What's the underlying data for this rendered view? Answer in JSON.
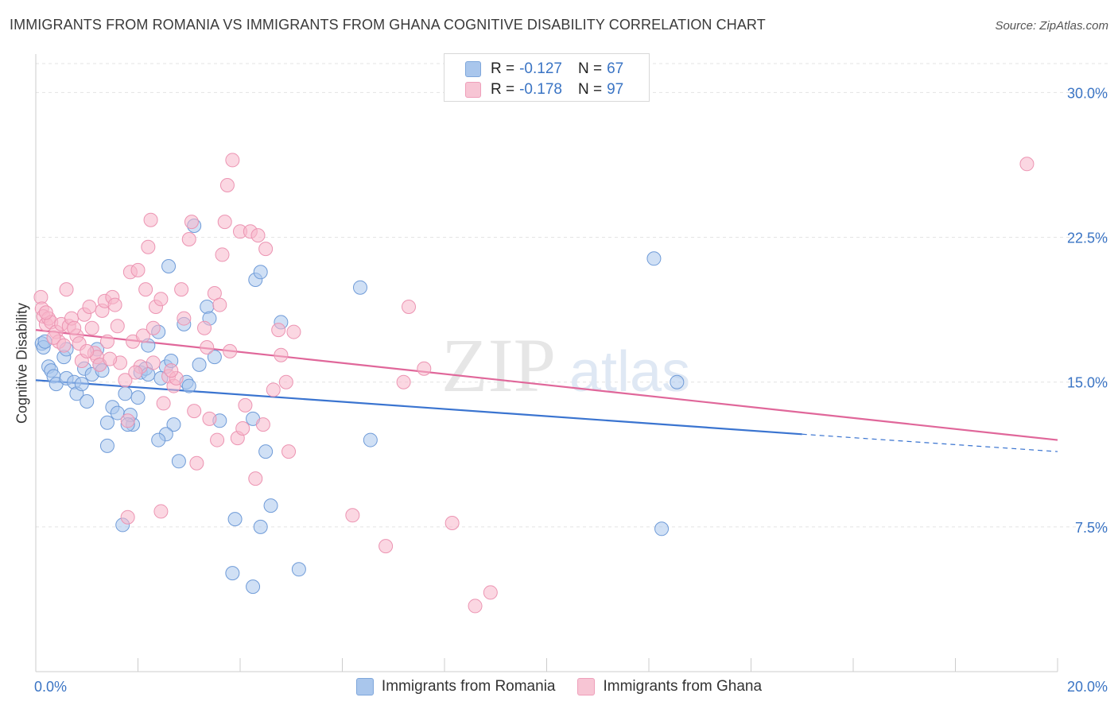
{
  "title": "IMMIGRANTS FROM ROMANIA VS IMMIGRANTS FROM GHANA COGNITIVE DISABILITY CORRELATION CHART",
  "source": "Source: ZipAtlas.com",
  "watermark": {
    "zip": "ZIP",
    "atlas": "atlas"
  },
  "legend_stats": [
    {
      "r_label": "R =",
      "r_value": "-0.127",
      "n_label": "N =",
      "n_value": "67",
      "color": "#a9c6ec"
    },
    {
      "r_label": "R =",
      "r_value": "-0.178",
      "n_label": "N =",
      "n_value": "97",
      "color": "#f7b7cb"
    }
  ],
  "chart_data": {
    "type": "scatter",
    "title": "IMMIGRANTS FROM ROMANIA VS IMMIGRANTS FROM GHANA COGNITIVE DISABILITY CORRELATION CHART",
    "xlabel": "",
    "ylabel": "Cognitive Disability",
    "xlim": [
      0,
      20
    ],
    "ylim": [
      0,
      31.5
    ],
    "x_tick_labels": [
      "0.0%",
      "20.0%"
    ],
    "y_ticks": [
      7.5,
      15.0,
      22.5,
      30.0
    ],
    "y_tick_labels": [
      "7.5%",
      "15.0%",
      "22.5%",
      "30.0%"
    ],
    "grid": true,
    "legend_position": "bottom",
    "series": [
      {
        "name": "Immigrants from Romania",
        "color": "#3a74d0",
        "fill": "#a9c6ec",
        "trend": {
          "x0": 0,
          "y0": 15.1,
          "x1": 15.0,
          "y1": 12.3,
          "dashed_to_x": 20,
          "dashed_to_y": 11.4
        },
        "points": [
          [
            0.12,
            17.0
          ],
          [
            0.15,
            16.8
          ],
          [
            0.25,
            15.8
          ],
          [
            0.3,
            15.6
          ],
          [
            0.35,
            15.3
          ],
          [
            0.55,
            16.3
          ],
          [
            0.4,
            14.9
          ],
          [
            0.6,
            15.2
          ],
          [
            0.75,
            15.0
          ],
          [
            0.8,
            14.4
          ],
          [
            0.95,
            15.7
          ],
          [
            1.1,
            15.4
          ],
          [
            1.2,
            16.7
          ],
          [
            1.25,
            15.9
          ],
          [
            1.3,
            15.6
          ],
          [
            1.0,
            14.0
          ],
          [
            1.5,
            13.7
          ],
          [
            1.4,
            12.9
          ],
          [
            1.6,
            13.4
          ],
          [
            1.75,
            14.4
          ],
          [
            1.9,
            12.8
          ],
          [
            1.85,
            13.3
          ],
          [
            2.0,
            14.2
          ],
          [
            2.05,
            15.5
          ],
          [
            2.15,
            15.7
          ],
          [
            2.2,
            16.9
          ],
          [
            2.4,
            17.6
          ],
          [
            2.55,
            15.8
          ],
          [
            2.65,
            16.1
          ],
          [
            2.7,
            12.8
          ],
          [
            2.55,
            12.3
          ],
          [
            2.4,
            12.0
          ],
          [
            2.8,
            10.9
          ],
          [
            2.9,
            18.0
          ],
          [
            2.95,
            15.0
          ],
          [
            3.1,
            23.1
          ],
          [
            3.2,
            15.9
          ],
          [
            3.35,
            18.9
          ],
          [
            3.4,
            18.3
          ],
          [
            3.5,
            16.3
          ],
          [
            3.6,
            13.0
          ],
          [
            2.6,
            21.0
          ],
          [
            2.2,
            15.4
          ],
          [
            1.4,
            11.7
          ],
          [
            1.7,
            7.6
          ],
          [
            3.9,
            7.9
          ],
          [
            4.4,
            7.5
          ],
          [
            4.6,
            8.6
          ],
          [
            4.5,
            11.4
          ],
          [
            4.25,
            13.1
          ],
          [
            4.3,
            20.3
          ],
          [
            4.4,
            20.7
          ],
          [
            4.8,
            18.1
          ],
          [
            3.85,
            5.1
          ],
          [
            4.25,
            4.4
          ],
          [
            5.15,
            5.3
          ],
          [
            6.35,
            19.9
          ],
          [
            6.55,
            12.0
          ],
          [
            12.1,
            21.4
          ],
          [
            12.55,
            15.0
          ],
          [
            12.25,
            7.4
          ],
          [
            0.18,
            17.1
          ],
          [
            0.6,
            16.7
          ],
          [
            0.9,
            14.9
          ],
          [
            1.8,
            12.8
          ],
          [
            2.45,
            15.2
          ],
          [
            3.0,
            14.8
          ]
        ]
      },
      {
        "name": "Immigrants from Ghana",
        "color": "#e0679a",
        "fill": "#f7b7cb",
        "trend": {
          "x0": 0,
          "y0": 17.7,
          "x1": 20,
          "y1": 12.0
        },
        "points": [
          [
            0.1,
            19.4
          ],
          [
            0.12,
            18.8
          ],
          [
            0.15,
            18.4
          ],
          [
            0.2,
            18.0
          ],
          [
            0.25,
            18.3
          ],
          [
            0.3,
            18.1
          ],
          [
            0.4,
            17.6
          ],
          [
            0.45,
            17.1
          ],
          [
            0.5,
            18.0
          ],
          [
            0.6,
            19.8
          ],
          [
            0.65,
            17.9
          ],
          [
            0.7,
            18.3
          ],
          [
            0.8,
            17.4
          ],
          [
            0.85,
            17.0
          ],
          [
            0.9,
            16.1
          ],
          [
            0.95,
            18.5
          ],
          [
            1.05,
            18.9
          ],
          [
            1.1,
            17.8
          ],
          [
            1.15,
            16.5
          ],
          [
            1.2,
            16.3
          ],
          [
            1.3,
            18.7
          ],
          [
            1.35,
            19.2
          ],
          [
            1.4,
            17.1
          ],
          [
            1.5,
            19.4
          ],
          [
            1.55,
            19.0
          ],
          [
            1.6,
            17.9
          ],
          [
            1.65,
            16.0
          ],
          [
            1.75,
            15.1
          ],
          [
            1.8,
            13.0
          ],
          [
            1.85,
            20.7
          ],
          [
            1.9,
            17.1
          ],
          [
            2.0,
            20.8
          ],
          [
            2.05,
            15.8
          ],
          [
            2.1,
            17.4
          ],
          [
            2.15,
            19.8
          ],
          [
            2.2,
            22.0
          ],
          [
            2.25,
            23.4
          ],
          [
            2.3,
            17.8
          ],
          [
            2.35,
            18.9
          ],
          [
            2.45,
            19.3
          ],
          [
            2.5,
            13.9
          ],
          [
            2.6,
            15.3
          ],
          [
            2.7,
            14.8
          ],
          [
            2.75,
            15.2
          ],
          [
            2.85,
            19.8
          ],
          [
            2.9,
            18.3
          ],
          [
            3.0,
            22.4
          ],
          [
            3.05,
            23.3
          ],
          [
            3.15,
            10.8
          ],
          [
            3.3,
            17.8
          ],
          [
            3.35,
            16.8
          ],
          [
            3.4,
            13.1
          ],
          [
            3.5,
            19.6
          ],
          [
            3.55,
            12.0
          ],
          [
            3.6,
            19.0
          ],
          [
            3.65,
            21.6
          ],
          [
            3.7,
            23.3
          ],
          [
            3.75,
            25.2
          ],
          [
            3.8,
            16.6
          ],
          [
            3.85,
            26.5
          ],
          [
            3.95,
            12.1
          ],
          [
            4.0,
            22.8
          ],
          [
            4.1,
            13.8
          ],
          [
            4.2,
            22.8
          ],
          [
            4.3,
            10.0
          ],
          [
            4.35,
            22.6
          ],
          [
            4.45,
            12.8
          ],
          [
            4.5,
            21.9
          ],
          [
            4.65,
            14.6
          ],
          [
            4.75,
            17.7
          ],
          [
            4.8,
            16.4
          ],
          [
            4.9,
            15.0
          ],
          [
            4.95,
            11.4
          ],
          [
            5.05,
            17.6
          ],
          [
            1.8,
            8.0
          ],
          [
            2.45,
            8.3
          ],
          [
            6.2,
            8.1
          ],
          [
            6.85,
            6.5
          ],
          [
            7.2,
            15.0
          ],
          [
            7.6,
            15.7
          ],
          [
            7.3,
            18.9
          ],
          [
            8.15,
            7.7
          ],
          [
            8.6,
            3.4
          ],
          [
            8.9,
            4.1
          ],
          [
            19.4,
            26.3
          ],
          [
            0.2,
            18.6
          ],
          [
            0.35,
            17.3
          ],
          [
            0.55,
            16.9
          ],
          [
            0.75,
            17.8
          ],
          [
            1.0,
            16.6
          ],
          [
            1.25,
            15.9
          ],
          [
            1.45,
            16.2
          ],
          [
            1.95,
            15.5
          ],
          [
            2.3,
            16.0
          ],
          [
            2.65,
            15.6
          ],
          [
            3.1,
            13.5
          ],
          [
            4.05,
            12.6
          ]
        ]
      }
    ]
  }
}
